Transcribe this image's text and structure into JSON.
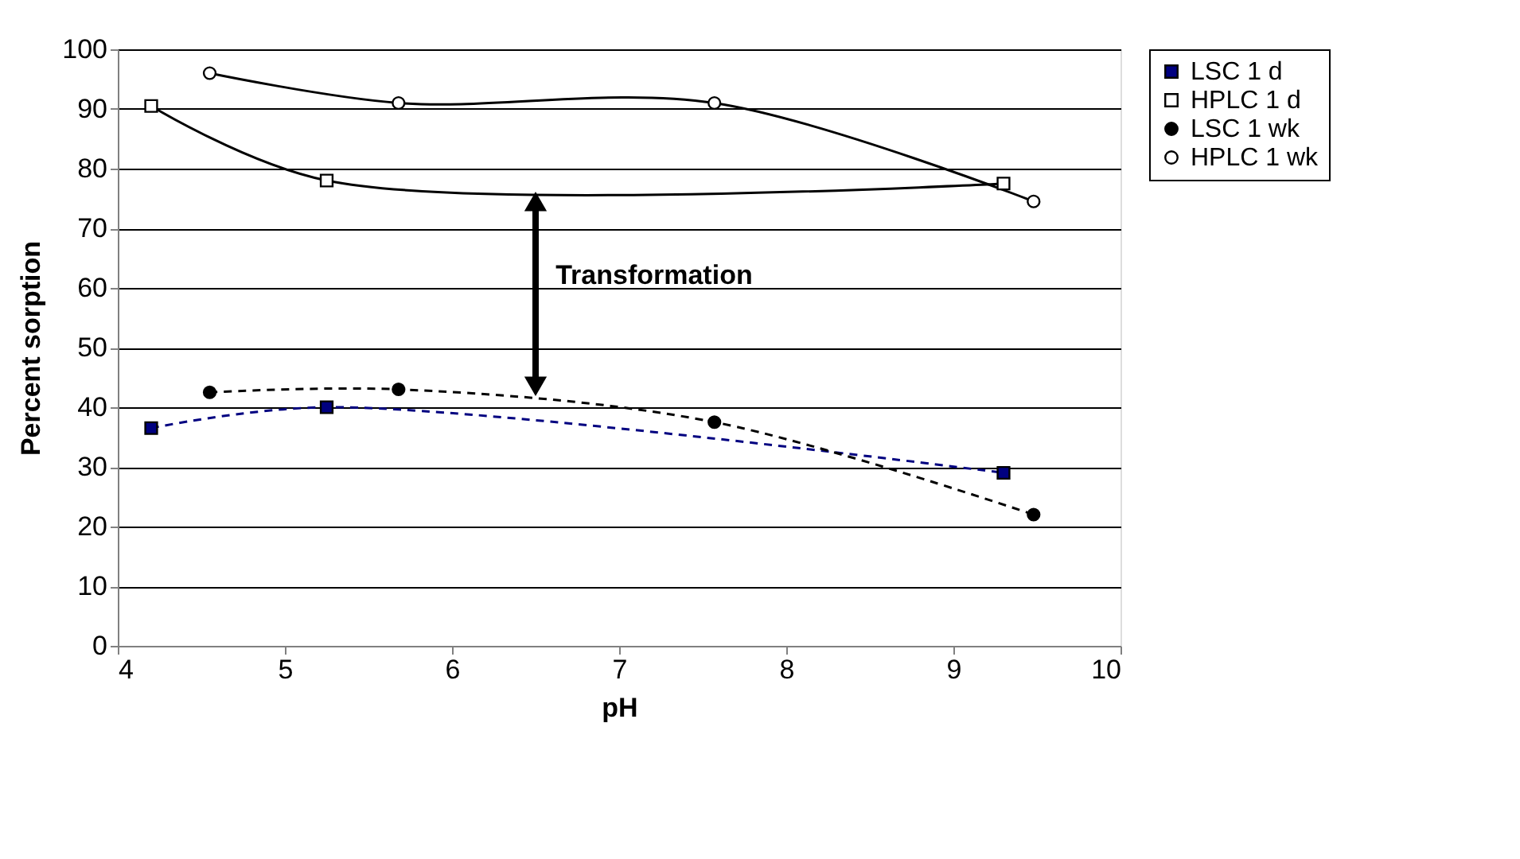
{
  "chart_data": {
    "type": "line",
    "xlabel": "pH",
    "ylabel": "Percent sorption",
    "xlim": [
      4,
      10
    ],
    "xticks": [
      4,
      5,
      6,
      7,
      8,
      9,
      10
    ],
    "ylim": [
      0,
      100
    ],
    "yticks": [
      0,
      10,
      20,
      30,
      40,
      50,
      60,
      70,
      80,
      90,
      100
    ],
    "grid": "y",
    "legend": "right",
    "series": [
      {
        "name": "LSC 1 d",
        "color": "#000080",
        "line_style": "dashed",
        "marker": "square",
        "x": [
          4.2,
          5.25,
          9.3
        ],
        "values": [
          36.5,
          40,
          29
        ]
      },
      {
        "name": "HPLC 1 d",
        "color": "#000000",
        "line_style": "solid",
        "marker": "square",
        "x": [
          4.2,
          5.25,
          9.3
        ],
        "values": [
          90.5,
          78,
          77.5
        ]
      },
      {
        "name": "LSC 1 wk",
        "color": "#000000",
        "line_style": "dashed",
        "marker": "circle",
        "x": [
          4.55,
          5.68,
          7.57,
          9.48
        ],
        "values": [
          42.5,
          43,
          37.5,
          22
        ]
      },
      {
        "name": "HPLC 1 wk",
        "color": "#000000",
        "line_style": "solid",
        "marker": "circle",
        "x": [
          4.55,
          5.68,
          7.57,
          9.48
        ],
        "values": [
          96,
          91,
          91,
          74.5
        ]
      }
    ],
    "annotations": [
      "Transformation"
    ]
  }
}
